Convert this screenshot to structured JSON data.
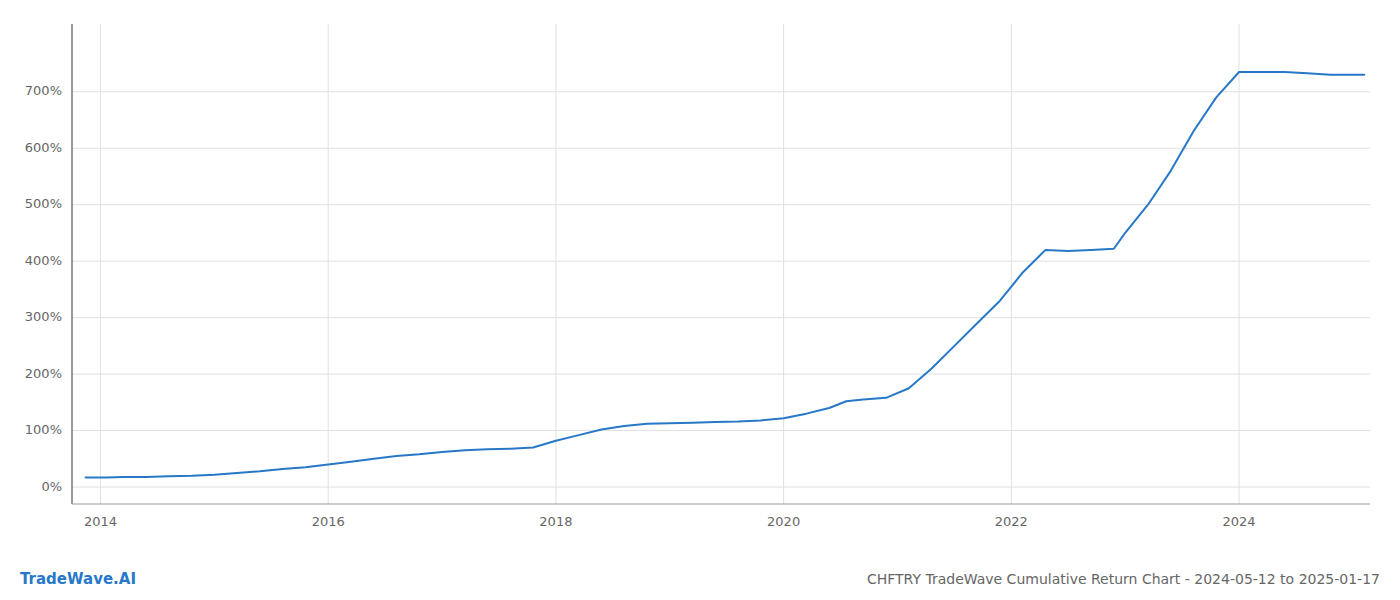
{
  "chart_data": {
    "type": "line",
    "title": "CHFTRY TradeWave Cumulative Return Chart - 2024-05-12 to 2025-01-17",
    "annotations": [
      "TradeWave.AI"
    ],
    "color": "#2878c8",
    "grid": true,
    "x": [
      2013.87,
      2013.95,
      2014.05,
      2014.2,
      2014.4,
      2014.6,
      2014.8,
      2015.0,
      2015.2,
      2015.4,
      2015.6,
      2015.8,
      2016.0,
      2016.2,
      2016.4,
      2016.6,
      2016.8,
      2017.0,
      2017.2,
      2017.4,
      2017.6,
      2017.8,
      2018.0,
      2018.2,
      2018.4,
      2018.6,
      2018.8,
      2019.0,
      2019.2,
      2019.4,
      2019.6,
      2019.8,
      2020.0,
      2020.2,
      2020.4,
      2020.55,
      2020.7,
      2020.9,
      2021.1,
      2021.3,
      2021.5,
      2021.7,
      2021.9,
      2022.0,
      2022.1,
      2022.2,
      2022.3,
      2022.5,
      2022.7,
      2022.9,
      2023.0,
      2023.2,
      2023.4,
      2023.6,
      2023.8,
      2024.0,
      2024.2,
      2024.4,
      2024.6,
      2024.8,
      2025.1
    ],
    "values": [
      17,
      17,
      17,
      18,
      18,
      19,
      20,
      22,
      25,
      28,
      32,
      35,
      40,
      45,
      50,
      55,
      58,
      62,
      65,
      67,
      68,
      70,
      82,
      92,
      102,
      108,
      112,
      113,
      114,
      115,
      116,
      118,
      122,
      130,
      140,
      152,
      155,
      158,
      175,
      210,
      250,
      290,
      330,
      355,
      380,
      400,
      420,
      418,
      420,
      422,
      450,
      500,
      560,
      630,
      690,
      735,
      735,
      735,
      733,
      730,
      730
    ],
    "xlim": [
      2013.75,
      2025.15
    ],
    "ylim": [
      -30,
      820
    ],
    "xticks": [
      2014,
      2016,
      2018,
      2020,
      2022,
      2024
    ],
    "yticks": [
      {
        "value": 0,
        "label": "0%"
      },
      {
        "value": 100,
        "label": "100%"
      },
      {
        "value": 200,
        "label": "200%"
      },
      {
        "value": 300,
        "label": "300%"
      },
      {
        "value": 400,
        "label": "400%"
      },
      {
        "value": 500,
        "label": "500%"
      },
      {
        "value": 600,
        "label": "600%"
      },
      {
        "value": 700,
        "label": "700%"
      }
    ]
  }
}
